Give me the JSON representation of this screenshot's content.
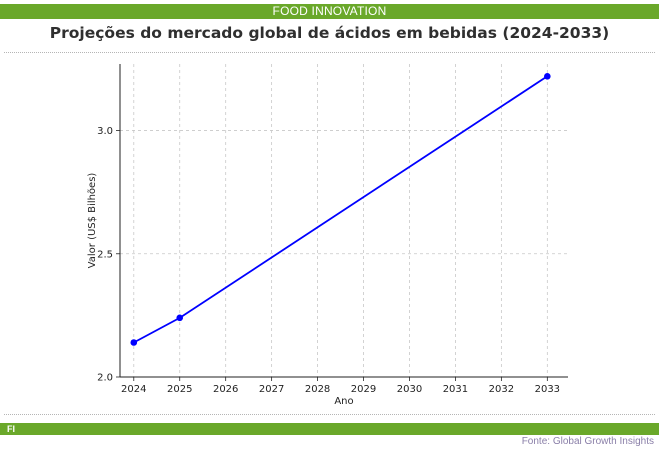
{
  "header": {
    "brand": "FOOD INNOVATION"
  },
  "footer": {
    "logo": "FI",
    "source": "Fonte: Global Growth Insights"
  },
  "chart_data": {
    "type": "line",
    "title": "Projeções do mercado global de ácidos em bebidas (2024-2033)",
    "xlabel": "Ano",
    "ylabel": "Valor (US$ Bilhões)",
    "x": [
      2024,
      2025,
      2033
    ],
    "y": [
      2.14,
      2.24,
      3.22
    ],
    "xlim": [
      2023.7,
      2033.45
    ],
    "ylim": [
      2.0,
      3.27
    ],
    "xticks": [
      "2024",
      "2025",
      "2026",
      "2027",
      "2028",
      "2029",
      "2030",
      "2031",
      "2032",
      "2033"
    ],
    "yticks": [
      "2.0",
      "2.5",
      "3.0"
    ],
    "grid": true,
    "line_color": "#0000ff"
  }
}
